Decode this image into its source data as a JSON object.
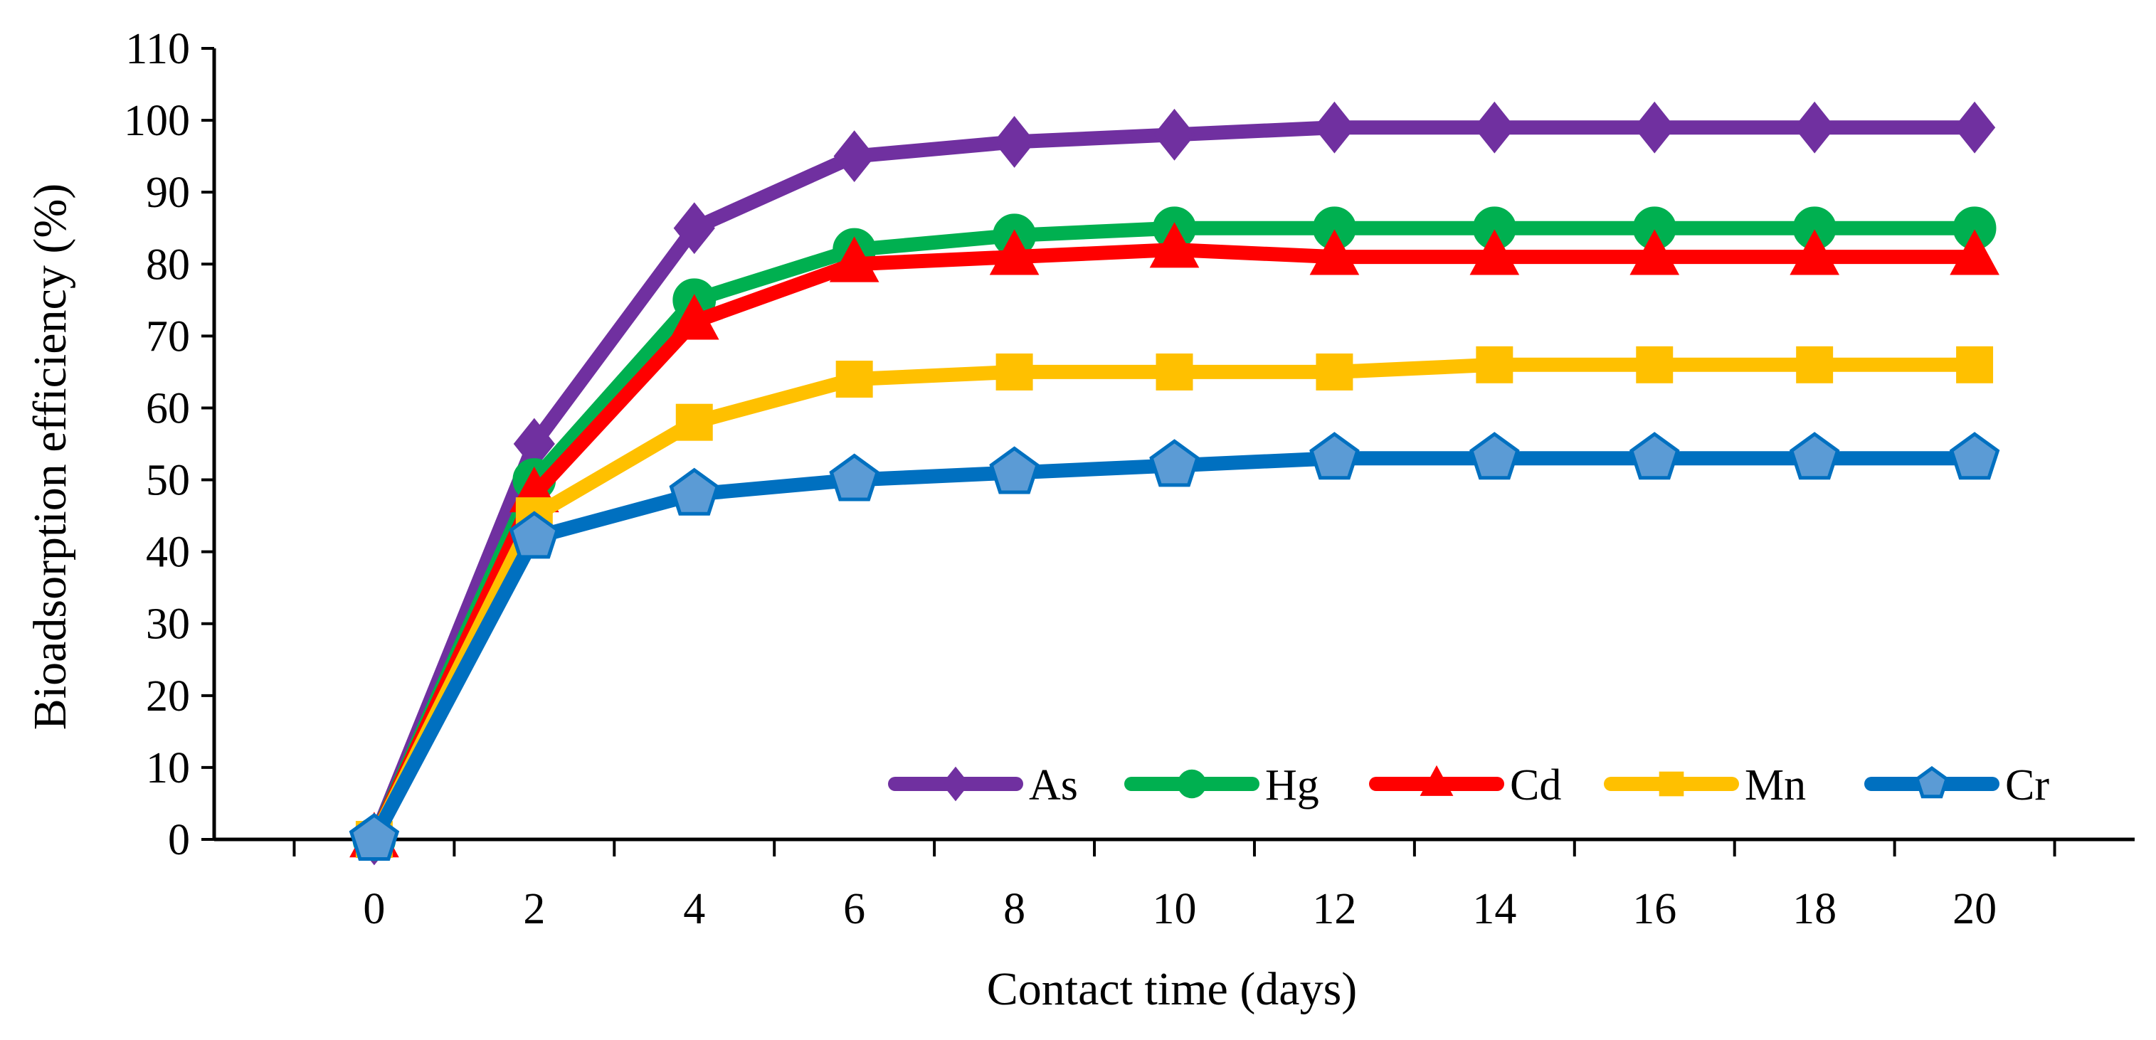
{
  "chart_data": {
    "type": "line",
    "xlabel": "Contact time (days)",
    "ylabel": "Bioadsorption efficiency (%)",
    "x": [
      0,
      2,
      4,
      6,
      8,
      10,
      12,
      14,
      16,
      18,
      20
    ],
    "xlim": [
      -2,
      22
    ],
    "ylim": [
      0,
      110
    ],
    "y_ticks": [
      0,
      10,
      20,
      30,
      40,
      50,
      60,
      70,
      80,
      90,
      100,
      110
    ],
    "x_ticks": [
      0,
      2,
      4,
      6,
      8,
      10,
      12,
      14,
      16,
      18,
      20
    ],
    "grid": false,
    "legend_position": "bottom-right",
    "series": [
      {
        "name": "As",
        "color": "#7030A0",
        "marker": "diamond",
        "values": [
          0,
          55,
          85,
          95,
          97,
          98,
          99,
          99,
          99,
          99,
          99
        ]
      },
      {
        "name": "Hg",
        "color": "#00B050",
        "marker": "circle",
        "values": [
          0,
          50,
          75,
          82,
          84,
          85,
          85,
          85,
          85,
          85,
          85
        ]
      },
      {
        "name": "Cd",
        "color": "#FF0000",
        "marker": "triangle",
        "values": [
          0,
          48,
          72,
          80,
          81,
          82,
          81,
          81,
          81,
          81,
          81
        ]
      },
      {
        "name": "Mn",
        "color": "#FFC000",
        "marker": "square",
        "values": [
          0,
          45,
          58,
          64,
          65,
          65,
          65,
          66,
          66,
          66,
          66
        ]
      },
      {
        "name": "Cr",
        "color": "#0070C0",
        "marker_fill": "#5B9BD5",
        "marker": "pentagon",
        "values": [
          0,
          42,
          48,
          50,
          51,
          52,
          53,
          53,
          53,
          53,
          53
        ]
      }
    ]
  }
}
